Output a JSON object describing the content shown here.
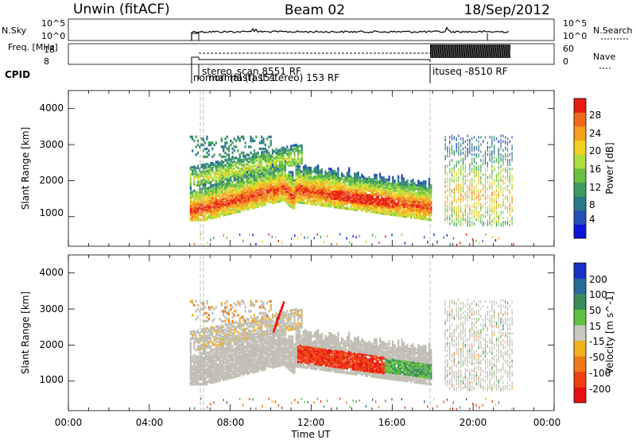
{
  "header": {
    "station": "Unwin (fitACF)",
    "beam": "Beam 02",
    "date": "18/Sep/2012"
  },
  "colors": {
    "power": [
      "#0a14d8",
      "#2452b4",
      "#2c7a86",
      "#3f9a60",
      "#6cc040",
      "#aede3c",
      "#f0d020",
      "#f5a020",
      "#f06a1c",
      "#e81e10"
    ],
    "velocity": [
      "#1a30c8",
      "#2a6a9a",
      "#3a8a5a",
      "#60c040",
      "#c8c8c0",
      "#f0b020",
      "#f07818",
      "#ee4010",
      "#e81010"
    ],
    "ground_scatter": "#c0beb4"
  },
  "chart_data": [
    {
      "type": "line",
      "name": "nsky-nsearch",
      "ylabel_left": "N.Sky",
      "ylabel_right": "N.Search",
      "ytick_labels": [
        "10^5",
        "10^0"
      ],
      "xlim": [
        "00:00",
        "24:00"
      ]
    },
    {
      "type": "line",
      "name": "freq-nave",
      "ylabel_left": "Freq. [MHz]",
      "ylabel_right": "Nave",
      "ytick_labels_left": [
        "18",
        "8"
      ],
      "ytick_labels_right": [
        "60",
        "0"
      ],
      "cpid_label": "CPID",
      "cpid_segments": [
        {
          "start": "06:00",
          "label": "normal (fast) 151"
        },
        {
          "start": "06:15",
          "label": "stereo_scan 8551 RF"
        },
        {
          "start": "06:25",
          "label": "normal (fast stereo) 153 RF"
        },
        {
          "start": "18:00",
          "label": "ituseq -8510 RF"
        }
      ]
    },
    {
      "type": "heatmap",
      "name": "power",
      "ylabel": "Slant Range [km]",
      "ylim": [
        180,
        4500
      ],
      "yticks": [
        1000,
        2000,
        3000,
        4000
      ],
      "colorbar_label": "Power [dB]",
      "colorbar_ticks": [
        4,
        8,
        12,
        16,
        20,
        24,
        28
      ],
      "clim": [
        0,
        30
      ]
    },
    {
      "type": "heatmap",
      "name": "velocity",
      "ylabel": "Slant Range [km]",
      "ylim": [
        180,
        4500
      ],
      "yticks": [
        1000,
        2000,
        3000,
        4000
      ],
      "colorbar_label": "Velocity [m s^-1]",
      "colorbar_ticks": [
        200,
        100,
        50,
        15,
        -15,
        -50,
        -100,
        -200
      ],
      "xlabel": "Time UT",
      "xticks": [
        "00:00",
        "04:00",
        "08:00",
        "12:00",
        "16:00",
        "20:00",
        "00:00"
      ]
    }
  ]
}
